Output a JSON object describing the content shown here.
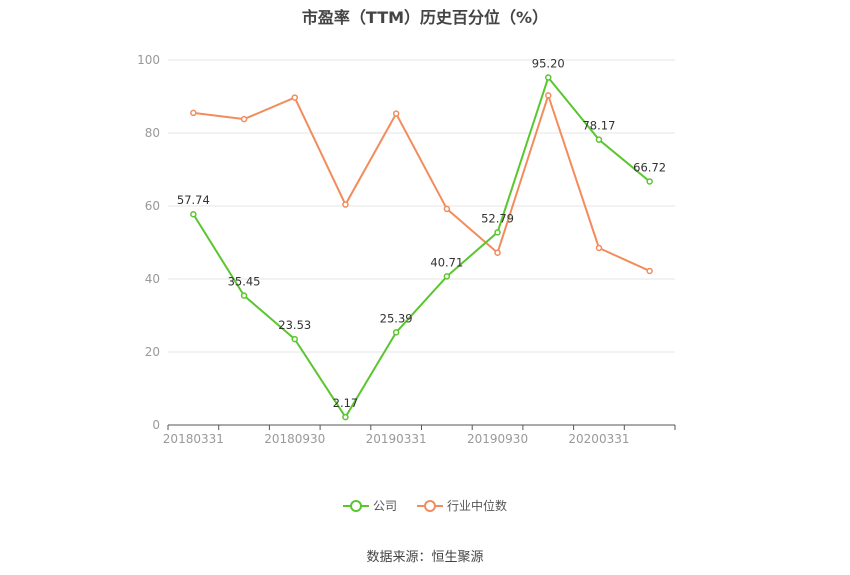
{
  "chart_data": {
    "type": "line",
    "title": "市盈率（TTM）历史百分位（%）",
    "xlabel": "",
    "ylabel": "",
    "ylim": [
      0,
      100
    ],
    "yticks": [
      0,
      20,
      40,
      60,
      80,
      100
    ],
    "x_tick_labels": [
      "20180331",
      "20180930",
      "20190331",
      "20190930",
      "20200331"
    ],
    "point_count": 10,
    "grid": true,
    "legend_position": "bottom",
    "series": [
      {
        "name": "公司",
        "color": "#5ac62f",
        "values": [
          57.74,
          35.45,
          23.53,
          2.17,
          25.39,
          40.71,
          52.79,
          95.2,
          78.17,
          66.72
        ],
        "labels": [
          "57.74",
          "35.45",
          "23.53",
          "2.17",
          "25.39",
          "40.71",
          "52.79",
          "95.20",
          "78.17",
          "66.72"
        ]
      },
      {
        "name": "行业中位数",
        "color": "#f28c5c",
        "values": [
          85.5,
          83.8,
          89.7,
          60.4,
          85.3,
          59.2,
          47.2,
          90.3,
          48.5,
          42.2
        ]
      }
    ]
  },
  "source": "数据来源：恒生聚源"
}
